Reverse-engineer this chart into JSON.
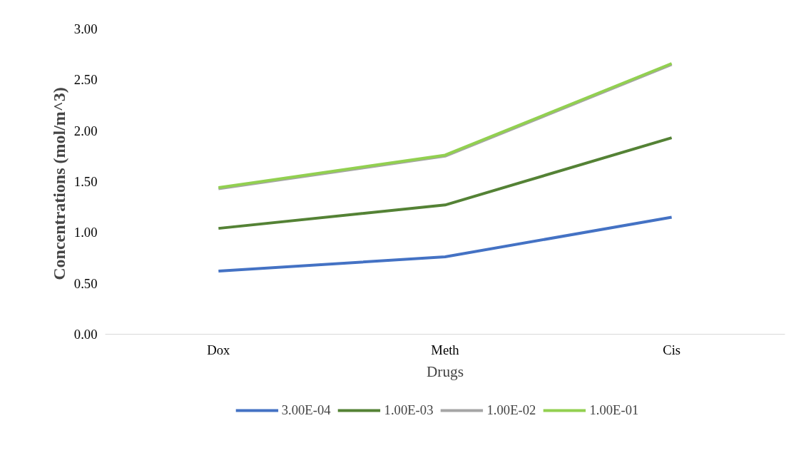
{
  "chart_data": {
    "type": "line",
    "xlabel": "Drugs",
    "ylabel": "Concentrations  (mol/m^3)",
    "categories": [
      "Dox",
      "Meth",
      "Cis"
    ],
    "series": [
      {
        "name": "3.00E-04",
        "color": "#4472c4",
        "values": [
          0.62,
          0.76,
          1.15
        ]
      },
      {
        "name": "1.00E-03",
        "color": "#548235",
        "values": [
          1.04,
          1.27,
          1.93
        ]
      },
      {
        "name": "1.00E-02",
        "color": "#a5a5a5",
        "values": [
          1.43,
          1.75,
          2.65
        ]
      },
      {
        "name": "1.00E-01",
        "color": "#92d050",
        "values": [
          1.44,
          1.76,
          2.66
        ]
      }
    ],
    "ylim": [
      0,
      3
    ],
    "yticks": [
      {
        "value": 0,
        "label": "0.00"
      },
      {
        "value": 0.5,
        "label": "0.50"
      },
      {
        "value": 1,
        "label": "1.00"
      },
      {
        "value": 1.5,
        "label": "1.50"
      },
      {
        "value": 2,
        "label": "2.00"
      },
      {
        "value": 2.5,
        "label": "2.50"
      },
      {
        "value": 3,
        "label": "3.00"
      }
    ],
    "grid": false,
    "legend": "bottom",
    "marker": "none",
    "line_style": "solid"
  }
}
